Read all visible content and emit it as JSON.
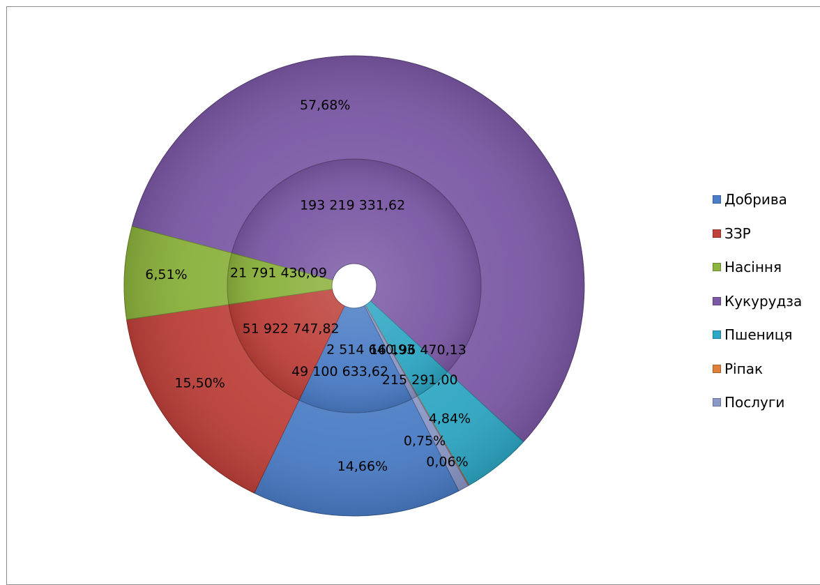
{
  "chart_data": {
    "type": "pie",
    "subtype": "doughnut",
    "title": "",
    "categories": [
      "Добрива",
      "ЗЗР",
      "Насіння",
      "Кукурудза",
      "Пшениця",
      "Ріпак",
      "Послуги"
    ],
    "legend": {
      "placement": "right",
      "entries": [
        "Добрива",
        "ЗЗР",
        "Насіння",
        "Кукурудза",
        "Пшениця",
        "Ріпак",
        "Послуги"
      ]
    },
    "colors": {
      "Добрива": "#4a7ec8",
      "ЗЗР": "#c0403a",
      "Насіння": "#8db43c",
      "Кукурудза": "#7b59a6",
      "Пшениця": "#2ea8c6",
      "Ріпак": "#e0803a",
      "Послуги": "#8c98c8"
    },
    "rings": [
      {
        "ring": "outer",
        "slices": [
          {
            "category": "Кукурудза",
            "value": 57.68,
            "label": "57,68%"
          },
          {
            "category": "Пшениця",
            "value": 4.84,
            "label": "4,84%"
          },
          {
            "category": "Ріпак",
            "value": 0.06,
            "label": "0,06%"
          },
          {
            "category": "Послуги",
            "value": 0.75,
            "label": "0,75%"
          },
          {
            "category": "Добрива",
            "value": 14.66,
            "label": "14,66%"
          },
          {
            "category": "ЗЗР",
            "value": 15.5,
            "label": "15,50%"
          },
          {
            "category": "Насіння",
            "value": 6.51,
            "label": "6,51%"
          }
        ]
      },
      {
        "ring": "inner",
        "slices": [
          {
            "category": "Кукурудза",
            "value": 193219331.62,
            "label": "193 219 331,62"
          },
          {
            "category": "Пшениця",
            "value": 16196470.13,
            "label": "16 196 470,13"
          },
          {
            "category": "Ріпак",
            "value": 215291.0,
            "label": "215 291,00"
          },
          {
            "category": "Послуги",
            "value": 2514640.93,
            "label": "2 514 640,93"
          },
          {
            "category": "Добрива",
            "value": 49100633.62,
            "label": "49 100 633,62"
          },
          {
            "category": "ЗЗР",
            "value": 51922747.82,
            "label": "51 922 747,82"
          },
          {
            "category": "Насіння",
            "value": 21791430.09,
            "label": "21 791 430,09"
          }
        ]
      }
    ]
  }
}
